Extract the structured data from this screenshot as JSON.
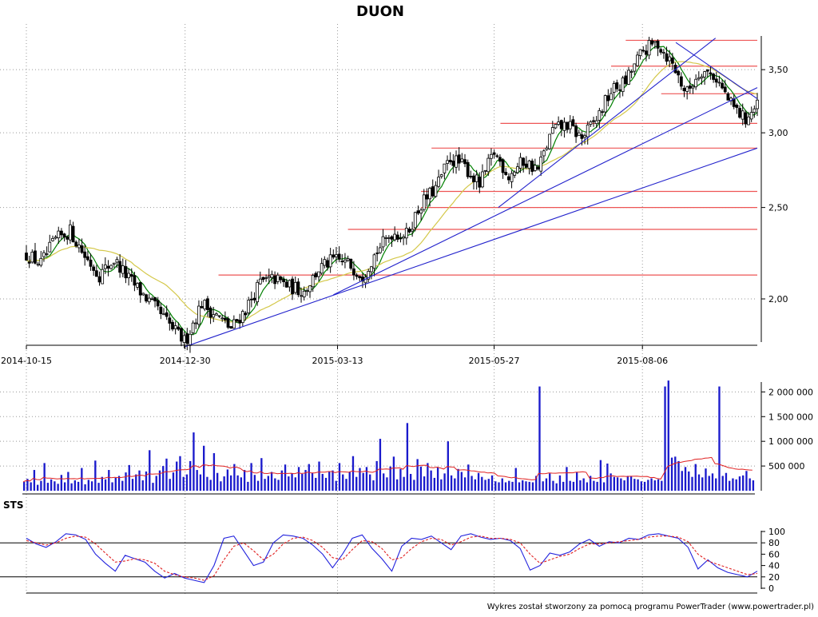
{
  "chart_data": [
    {
      "type": "candlestick",
      "title": "DUON",
      "y_axis_ticks": [
        "2,00",
        "2,50",
        "3,00",
        "3,50"
      ],
      "y_tick_values": [
        2.0,
        2.5,
        3.0,
        3.5
      ],
      "ylim": [
        1.8,
        3.8
      ],
      "scale": "log",
      "x_axis_ticks": [
        "2014-10-15",
        "2014-12-30",
        "2015-03-13",
        "2015-05-27",
        "2015-08-06"
      ],
      "x_range": [
        "2014-10-15",
        "2015-09-30"
      ],
      "close_series": [
        {
          "date": "2014-10-15",
          "close": 2.23
        },
        {
          "date": "2014-10-22",
          "close": 2.18
        },
        {
          "date": "2014-10-29",
          "close": 2.31
        },
        {
          "date": "2014-11-05",
          "close": 2.36
        },
        {
          "date": "2014-11-12",
          "close": 2.22
        },
        {
          "date": "2014-11-19",
          "close": 2.12
        },
        {
          "date": "2014-11-26",
          "close": 2.2
        },
        {
          "date": "2014-12-03",
          "close": 2.1
        },
        {
          "date": "2014-12-10",
          "close": 2.02
        },
        {
          "date": "2014-12-17",
          "close": 1.94
        },
        {
          "date": "2014-12-24",
          "close": 1.86
        },
        {
          "date": "2014-12-30",
          "close": 1.8
        },
        {
          "date": "2015-01-07",
          "close": 1.98
        },
        {
          "date": "2015-01-14",
          "close": 1.92
        },
        {
          "date": "2015-01-21",
          "close": 1.86
        },
        {
          "date": "2015-01-28",
          "close": 1.95
        },
        {
          "date": "2015-02-04",
          "close": 2.08
        },
        {
          "date": "2015-02-11",
          "close": 2.1
        },
        {
          "date": "2015-02-18",
          "close": 2.06
        },
        {
          "date": "2015-02-25",
          "close": 2.04
        },
        {
          "date": "2015-03-04",
          "close": 2.15
        },
        {
          "date": "2015-03-11",
          "close": 2.2
        },
        {
          "date": "2015-03-18",
          "close": 2.18
        },
        {
          "date": "2015-03-25",
          "close": 2.12
        },
        {
          "date": "2015-04-01",
          "close": 2.25
        },
        {
          "date": "2015-04-08",
          "close": 2.35
        },
        {
          "date": "2015-04-15",
          "close": 2.34
        },
        {
          "date": "2015-04-22",
          "close": 2.52
        },
        {
          "date": "2015-04-29",
          "close": 2.62
        },
        {
          "date": "2015-05-06",
          "close": 2.82
        },
        {
          "date": "2015-05-13",
          "close": 2.76
        },
        {
          "date": "2015-05-20",
          "close": 2.64
        },
        {
          "date": "2015-05-27",
          "close": 2.86
        },
        {
          "date": "2015-06-03",
          "close": 2.7
        },
        {
          "date": "2015-06-10",
          "close": 2.8
        },
        {
          "date": "2015-06-17",
          "close": 2.74
        },
        {
          "date": "2015-06-24",
          "close": 3.02
        },
        {
          "date": "2015-07-01",
          "close": 3.06
        },
        {
          "date": "2015-07-08",
          "close": 2.96
        },
        {
          "date": "2015-07-15",
          "close": 3.1
        },
        {
          "date": "2015-07-22",
          "close": 3.32
        },
        {
          "date": "2015-07-29",
          "close": 3.4
        },
        {
          "date": "2015-08-06",
          "close": 3.66
        },
        {
          "date": "2015-08-13",
          "close": 3.74
        },
        {
          "date": "2015-08-20",
          "close": 3.56
        },
        {
          "date": "2015-08-27",
          "close": 3.3
        },
        {
          "date": "2015-09-03",
          "close": 3.5
        },
        {
          "date": "2015-09-10",
          "close": 3.44
        },
        {
          "date": "2015-09-17",
          "close": 3.22
        },
        {
          "date": "2015-09-24",
          "close": 3.1
        },
        {
          "date": "2015-09-30",
          "close": 3.2
        }
      ],
      "horizontal_levels": [
        2.12,
        2.37,
        2.5,
        2.6,
        2.89,
        3.07,
        3.3,
        3.53,
        3.76
      ],
      "trend_lines": [
        {
          "from": [
            "2014-12-30",
            1.78
          ],
          "to": [
            "2015-09-30",
            2.89
          ]
        },
        {
          "from": [
            "2015-03-11",
            2.02
          ],
          "to": [
            "2015-09-30",
            3.35
          ]
        },
        {
          "from": [
            "2015-05-29",
            2.5
          ],
          "to": [
            "2015-09-10",
            3.78
          ]
        },
        {
          "from": [
            "2015-08-22",
            3.74
          ],
          "to": [
            "2015-09-30",
            3.26
          ]
        }
      ]
    },
    {
      "type": "bar",
      "name": "volume",
      "y_axis_ticks": [
        "500 000",
        "1 000 000",
        "1 500 000",
        "2 000 000"
      ],
      "y_tick_values": [
        500000,
        1000000,
        1500000,
        2000000
      ],
      "ylim": [
        0,
        2200000
      ],
      "values": [
        180000,
        240000,
        170000,
        420000,
        120000,
        200000,
        560000,
        160000,
        230000,
        190000,
        140000,
        320000,
        170000,
        380000,
        150000,
        210000,
        180000,
        460000,
        130000,
        220000,
        190000,
        610000,
        160000,
        280000,
        230000,
        420000,
        170000,
        260000,
        300000,
        200000,
        370000,
        520000,
        240000,
        330000,
        410000,
        210000,
        390000,
        820000,
        160000,
        300000,
        410000,
        500000,
        650000,
        240000,
        370000,
        590000,
        700000,
        280000,
        330000,
        600000,
        1180000,
        420000,
        330000,
        910000,
        280000,
        220000,
        760000,
        360000,
        190000,
        290000,
        430000,
        310000,
        540000,
        310000,
        270000,
        420000,
        180000,
        560000,
        320000,
        200000,
        660000,
        240000,
        300000,
        380000,
        250000,
        220000,
        410000,
        530000,
        290000,
        350000,
        270000,
        480000,
        340000,
        420000,
        540000,
        360000,
        260000,
        590000,
        340000,
        260000,
        380000,
        410000,
        200000,
        560000,
        330000,
        240000,
        380000,
        700000,
        280000,
        460000,
        360000,
        480000,
        330000,
        210000,
        600000,
        1050000,
        350000,
        270000,
        490000,
        690000,
        230000,
        440000,
        280000,
        1370000,
        340000,
        220000,
        640000,
        490000,
        290000,
        560000,
        410000,
        260000,
        470000,
        230000,
        350000,
        1000000,
        310000,
        250000,
        440000,
        380000,
        270000,
        530000,
        300000,
        230000,
        360000,
        280000,
        220000,
        240000,
        310000,
        190000,
        170000,
        250000,
        170000,
        200000,
        180000,
        460000,
        170000,
        210000,
        190000,
        180000,
        170000,
        300000,
        2110000,
        190000,
        250000,
        350000,
        200000,
        150000,
        310000,
        180000,
        480000,
        200000,
        180000,
        380000,
        210000,
        250000,
        170000,
        300000,
        200000,
        180000,
        620000,
        170000,
        550000,
        350000,
        280000,
        270000,
        250000,
        210000,
        300000,
        290000,
        240000,
        230000,
        190000,
        180000,
        220000,
        250000,
        210000,
        230000,
        200000,
        2110000,
        2230000,
        670000,
        690000,
        600000,
        400000,
        480000,
        390000,
        280000,
        540000,
        330000,
        270000,
        450000,
        300000,
        350000,
        250000,
        2110000,
        300000,
        360000,
        200000,
        250000,
        230000,
        290000,
        310000,
        400000,
        250000,
        210000
      ]
    },
    {
      "type": "line",
      "name": "STS",
      "title": "STS",
      "y_axis_ticks": [
        "0",
        "20",
        "40",
        "60",
        "80",
        "100"
      ],
      "y_tick_values": [
        0,
        20,
        40,
        60,
        80,
        100
      ],
      "ylim": [
        0,
        100
      ],
      "reference_lines": [
        20,
        80
      ],
      "series": [
        {
          "values": [
            88,
            78,
            72,
            82,
            96,
            94,
            86,
            60,
            44,
            30,
            58,
            52,
            46,
            30,
            18,
            26,
            18,
            14,
            10,
            40,
            88,
            92,
            66,
            40,
            46,
            80,
            94,
            92,
            88,
            76,
            60,
            36,
            60,
            88,
            94,
            70,
            52,
            30,
            74,
            88,
            86,
            92,
            80,
            68,
            92,
            96,
            90,
            86,
            88,
            84,
            70,
            32,
            40,
            62,
            58,
            64,
            78,
            86,
            74,
            82,
            80,
            88,
            86,
            94,
            96,
            92,
            88,
            72,
            34,
            50,
            36,
            28,
            24,
            20,
            30
          ]
        },
        {
          "values": [
            84,
            80,
            76,
            80,
            88,
            92,
            90,
            78,
            62,
            46,
            48,
            52,
            50,
            44,
            30,
            24,
            20,
            18,
            14,
            22,
            50,
            74,
            80,
            66,
            50,
            60,
            78,
            88,
            90,
            84,
            72,
            54,
            50,
            68,
            84,
            82,
            70,
            50,
            54,
            70,
            82,
            88,
            86,
            76,
            82,
            90,
            92,
            88,
            88,
            86,
            80,
            60,
            44,
            50,
            56,
            60,
            70,
            78,
            78,
            80,
            82,
            84,
            86,
            90,
            92,
            92,
            90,
            82,
            60,
            48,
            42,
            36,
            30,
            24,
            26
          ]
        }
      ]
    }
  ],
  "footer": {
    "credit": "Wykres został stworzony za pomocą programu PowerTrader (www.powertrader.pl)"
  },
  "colors": {
    "price_up": "#000000",
    "price_down": "#000000",
    "ma_short": "#008000",
    "ma_long": "#d4c84a",
    "level_line": "#ee5555",
    "trend_line": "#2222cc",
    "volume_bar": "#1a1acc",
    "volume_ma": "#e02020",
    "sts_k": "#2222dd",
    "sts_d": "#e02020",
    "grid": "#999999"
  }
}
